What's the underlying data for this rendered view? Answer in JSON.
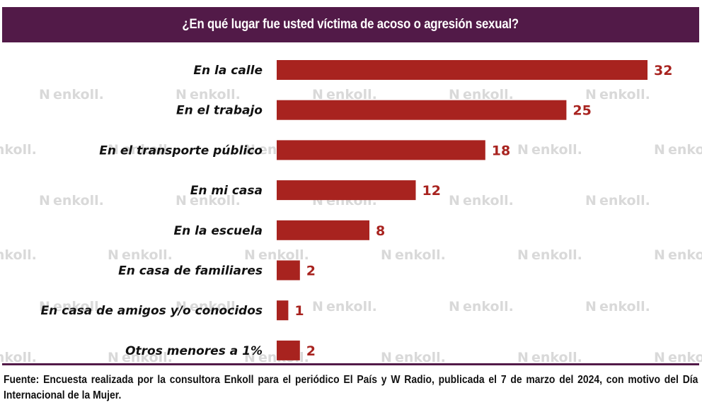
{
  "chart_data": {
    "type": "bar",
    "orientation": "horizontal",
    "title": "¿En qué lugar fue usted víctima de acoso o agresión sexual?",
    "categories": [
      "En la calle",
      "En el trabajo",
      "En el transporte público",
      "En mi casa",
      "En la escuela",
      "En casa de familiares",
      "En casa de amigos y/o conocidos",
      "Otros menores a 1%"
    ],
    "values": [
      32,
      25,
      18,
      12,
      8,
      2,
      1,
      2
    ],
    "data_labels": [
      "32",
      "25",
      "18",
      "12",
      "8",
      "2",
      "1",
      "2"
    ],
    "xlabel": "",
    "ylabel": "",
    "xlim": [
      0,
      32
    ],
    "grid": false,
    "legend": "none",
    "bar_color": "#a8231f"
  },
  "header": {
    "title": "¿En qué lugar fue usted víctima de acoso o agresión sexual?",
    "background": "#521a48"
  },
  "watermark": {
    "text": "enkoll."
  },
  "footer": {
    "source": "Fuente: Encuesta realizada por la consultora Enkoll para el periódico El País y W Radio, publicada el 7 de marzo del 2024, con motivo del Día Internacional de la Mujer."
  }
}
